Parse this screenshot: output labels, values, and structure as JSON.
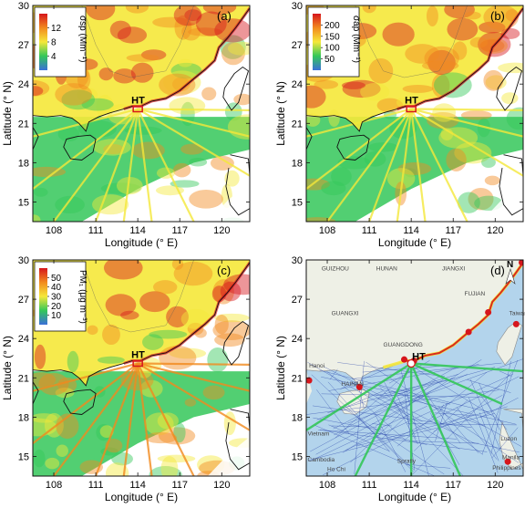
{
  "figure": {
    "hotspot_label": "HT",
    "xaxis_label": "Longitude (° E)",
    "yaxis_label": "Latitude (° N)",
    "lat_ticks": [
      "15",
      "18",
      "21",
      "24",
      "27",
      "30"
    ],
    "lon_ticks": [
      "108",
      "111",
      "114",
      "117",
      "120"
    ]
  },
  "panels": [
    {
      "id": "a",
      "tag": "(a)",
      "colorbar": {
        "label": "σsp (Mm⁻¹)",
        "ticks": [
          "4",
          "8",
          "12"
        ]
      }
    },
    {
      "id": "b",
      "tag": "(b)",
      "colorbar": {
        "label": "σap (Mm⁻¹)",
        "ticks": [
          "50",
          "100",
          "150",
          "200"
        ]
      }
    },
    {
      "id": "c",
      "tag": "(c)",
      "colorbar": {
        "label": "PM₁ (μg m⁻³)",
        "ticks": [
          "10",
          "20",
          "30",
          "40",
          "50"
        ]
      }
    },
    {
      "id": "d",
      "tag": "(d)",
      "north": "N",
      "place_labels": [
        "GUIZHOU",
        "HUNAN",
        "JIANGXI",
        "GUANGXI",
        "FUJIAN",
        "Taiwan",
        "GUANGDONG",
        "Hanoi",
        "HAINAN",
        "Vietnam",
        "Luzon",
        "Manila",
        "Cambodia",
        "Philippines",
        "Ho Chi",
        "Spratly"
      ]
    }
  ],
  "colors": {
    "low": "#3a6fd8",
    "mid_low": "#34c759",
    "mid": "#f5e83a",
    "high": "#f28a1e",
    "max": "#d6161c",
    "sea_d": "#b3d4ec",
    "land_d": "#eef0e6",
    "ship_d": "#1f3aa6"
  }
}
